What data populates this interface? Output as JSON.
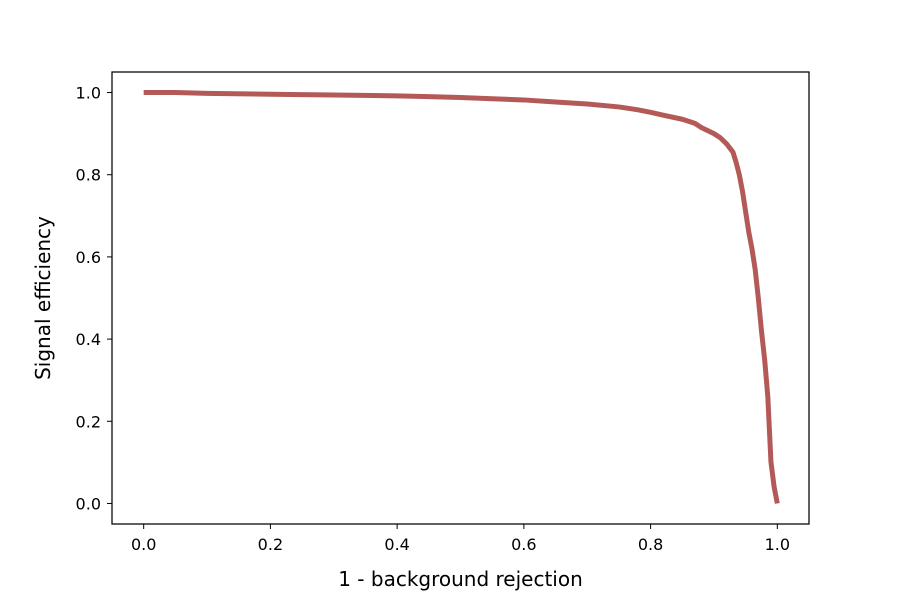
{
  "chart_data": {
    "type": "line",
    "title": "",
    "xlabel": "1 - background rejection",
    "ylabel": "Signal efficiency",
    "xlim": [
      -0.05,
      1.05
    ],
    "ylim": [
      -0.05,
      1.05
    ],
    "x_ticks": [
      "0.0",
      "0.2",
      "0.4",
      "0.6",
      "0.8",
      "1.0"
    ],
    "y_ticks": [
      "0.0",
      "0.2",
      "0.4",
      "0.6",
      "0.8",
      "1.0"
    ],
    "grid": false,
    "legend": false,
    "series": [
      {
        "color": "#b35a58",
        "x": [
          0.0,
          0.05,
          0.1,
          0.2,
          0.3,
          0.4,
          0.45,
          0.5,
          0.55,
          0.6,
          0.65,
          0.7,
          0.75,
          0.78,
          0.8,
          0.82,
          0.85,
          0.87,
          0.88,
          0.9,
          0.91,
          0.92,
          0.93,
          0.935,
          0.94,
          0.945,
          0.95,
          0.955,
          0.96,
          0.965,
          0.97,
          0.975,
          0.98,
          0.985,
          0.99,
          0.995,
          1.0
        ],
        "y": [
          1.0,
          1.0,
          0.998,
          0.996,
          0.994,
          0.992,
          0.99,
          0.988,
          0.985,
          0.982,
          0.977,
          0.972,
          0.965,
          0.958,
          0.952,
          0.945,
          0.935,
          0.925,
          0.915,
          0.9,
          0.89,
          0.875,
          0.855,
          0.83,
          0.8,
          0.76,
          0.71,
          0.66,
          0.62,
          0.57,
          0.5,
          0.42,
          0.35,
          0.26,
          0.1,
          0.04,
          0.0
        ]
      }
    ]
  }
}
